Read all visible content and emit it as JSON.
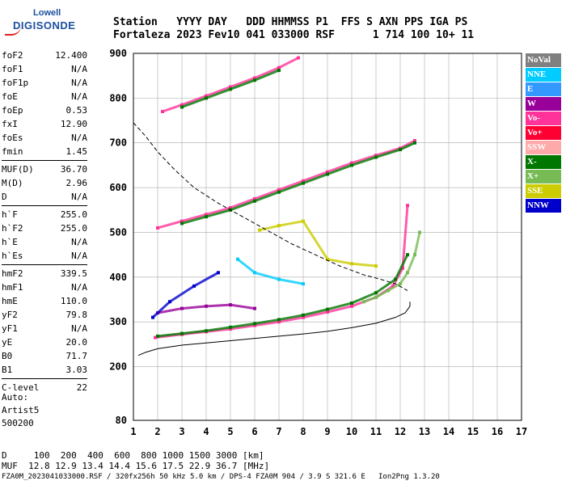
{
  "logo": {
    "line1": "Lowell",
    "line2": "DIGISONDE"
  },
  "header": {
    "labels": "Station   YYYY DAY   DDD HHMMSS P1  FFS S AXN PPS IGA PS",
    "values": "Fortaleza 2023 Fev10 041 033000 RSF      1 714 100 10+ 11"
  },
  "params": {
    "group1": [
      {
        "name": "foF2",
        "value": "12.400"
      },
      {
        "name": "foF1",
        "value": "N/A"
      },
      {
        "name": "foF1p",
        "value": "N/A"
      },
      {
        "name": "foE",
        "value": "N/A"
      },
      {
        "name": "foEp",
        "value": "0.53"
      },
      {
        "name": "fxI",
        "value": "12.90"
      },
      {
        "name": "foEs",
        "value": "N/A"
      },
      {
        "name": "fmin",
        "value": "1.45"
      }
    ],
    "group2": [
      {
        "name": "MUF(D)",
        "value": "36.70"
      },
      {
        "name": "M(D)",
        "value": "2.96"
      },
      {
        "name": "D",
        "value": "N/A"
      }
    ],
    "group3": [
      {
        "name": "h`F",
        "value": "255.0"
      },
      {
        "name": "h`F2",
        "value": "255.0"
      },
      {
        "name": "h`E",
        "value": "N/A"
      },
      {
        "name": "h`Es",
        "value": "N/A"
      }
    ],
    "group4": [
      {
        "name": "hmF2",
        "value": "339.5"
      },
      {
        "name": "hmF1",
        "value": "N/A"
      },
      {
        "name": "hmE",
        "value": "110.0"
      },
      {
        "name": "yF2",
        "value": "79.8"
      },
      {
        "name": "yF1",
        "value": "N/A"
      },
      {
        "name": "yE",
        "value": "20.0"
      },
      {
        "name": "B0",
        "value": "71.7"
      },
      {
        "name": "B1",
        "value": "3.03"
      }
    ],
    "group5": [
      {
        "name": "C-level",
        "value": "22"
      }
    ]
  },
  "auto": {
    "line1": "Auto:",
    "line2": "Artist5",
    "line3": "500200"
  },
  "legend": [
    {
      "label": "NoVal",
      "color": "#808080",
      "text": "#ffffff"
    },
    {
      "label": "NNE",
      "color": "#00ccff",
      "text": "#ffffff"
    },
    {
      "label": "E",
      "color": "#3399ff",
      "text": "#ffffff"
    },
    {
      "label": "W",
      "color": "#990099",
      "text": "#ffffff"
    },
    {
      "label": "Vo-",
      "color": "#ff3399",
      "text": "#ffffff"
    },
    {
      "label": "Vo+",
      "color": "#ff0033",
      "text": "#ffffff"
    },
    {
      "label": "SSW",
      "color": "#ffaaaa",
      "text": "#ffffff"
    },
    {
      "label": "X-",
      "color": "#007700",
      "text": "#ffffff"
    },
    {
      "label": "X+",
      "color": "#77bb55",
      "text": "#ffffff"
    },
    {
      "label": "SSE",
      "color": "#cccc00",
      "text": "#ffffff"
    },
    {
      "label": "NNW",
      "color": "#0000cc",
      "text": "#ffffff"
    }
  ],
  "bottom": {
    "d_row": "D     100  200  400  600  800 1000 1500 3000 [km]",
    "muf_row": "MUF  12.8 12.9 13.4 14.4 15.6 17.5 22.9 36.7 [MHz]"
  },
  "footer": "FZA0M_2023041033000.RSF / 320fx256h 50 kHz 5.0 km / DPS-4 FZA0M 904 / 3.9 S 321.6 E   Ion2Png 1.3.20",
  "chart_data": {
    "type": "scatter",
    "xlim": [
      1,
      17
    ],
    "ylim": [
      80,
      900
    ],
    "x_ticks": [
      1,
      2,
      3,
      4,
      5,
      6,
      7,
      8,
      9,
      10,
      11,
      12,
      13,
      14,
      15,
      16,
      17
    ],
    "y_ticks": [
      80,
      200,
      300,
      400,
      500,
      600,
      700,
      800,
      900
    ],
    "grid": true,
    "profile_dashed": {
      "x": [
        1.0,
        1.5,
        2.0,
        2.7,
        3.5,
        4.5,
        5.5,
        6.5,
        7.5,
        8.5,
        9.5,
        10.5,
        11.2,
        11.8,
        12.3
      ],
      "y": [
        745,
        715,
        680,
        640,
        600,
        565,
        535,
        505,
        475,
        450,
        425,
        405,
        395,
        385,
        370
      ]
    },
    "profile_solid": {
      "x": [
        1.2,
        1.5,
        2.0,
        3.0,
        4.0,
        5.0,
        6.0,
        7.0,
        8.0,
        9.0,
        10.0,
        11.0,
        11.8,
        12.2,
        12.4,
        12.4
      ],
      "y": [
        225,
        232,
        240,
        248,
        253,
        258,
        263,
        268,
        273,
        279,
        287,
        297,
        310,
        320,
        335,
        345
      ]
    },
    "traces": [
      {
        "name": "Vo-",
        "color": "#ff3399",
        "x": [
          1.9,
          3,
          4,
          5,
          6,
          7,
          8,
          9,
          10,
          11,
          11.7,
          12.1,
          12.3
        ],
        "y": [
          265,
          272,
          278,
          284,
          292,
          300,
          310,
          322,
          335,
          355,
          380,
          420,
          560
        ]
      },
      {
        "name": "X-",
        "color": "#007700",
        "x": [
          2,
          3,
          4,
          5,
          6,
          7,
          8,
          9,
          10,
          11,
          11.8,
          12.3
        ],
        "y": [
          268,
          274,
          280,
          288,
          296,
          305,
          315,
          328,
          342,
          365,
          395,
          450
        ]
      },
      {
        "name": "X+",
        "color": "#77bb55",
        "x": [
          10.5,
          11,
          11.5,
          12,
          12.3,
          12.6,
          12.8
        ],
        "y": [
          345,
          355,
          370,
          385,
          410,
          450,
          500
        ]
      },
      {
        "name": "Vo-",
        "color": "#ff3399",
        "x": [
          2,
          3,
          4,
          5,
          6,
          7,
          8,
          9,
          10,
          11,
          12,
          12.6
        ],
        "y": [
          510,
          525,
          540,
          555,
          575,
          595,
          615,
          635,
          655,
          672,
          688,
          705
        ]
      },
      {
        "name": "X-",
        "color": "#007700",
        "x": [
          3,
          4,
          5,
          6,
          7,
          8,
          9,
          10,
          11,
          12,
          12.6
        ],
        "y": [
          520,
          535,
          550,
          570,
          590,
          610,
          630,
          650,
          668,
          685,
          700
        ]
      },
      {
        "name": "Vo-",
        "color": "#ff3399",
        "x": [
          2.2,
          3,
          4,
          5,
          6,
          7,
          7.8
        ],
        "y": [
          770,
          785,
          805,
          825,
          845,
          868,
          890
        ]
      },
      {
        "name": "X-",
        "color": "#007700",
        "x": [
          3,
          4,
          5,
          6,
          7
        ],
        "y": [
          780,
          800,
          820,
          840,
          862
        ]
      },
      {
        "name": "W",
        "color": "#990099",
        "x": [
          2,
          3,
          4,
          5,
          6
        ],
        "y": [
          320,
          330,
          335,
          338,
          330
        ]
      },
      {
        "name": "NNW",
        "color": "#0000cc",
        "x": [
          1.8,
          2.5,
          3.5,
          4.5
        ],
        "y": [
          310,
          345,
          380,
          410
        ]
      },
      {
        "name": "SSE",
        "color": "#cccc00",
        "x": [
          6.2,
          7,
          8,
          9,
          10,
          11
        ],
        "y": [
          505,
          515,
          525,
          440,
          430,
          425
        ]
      },
      {
        "name": "NNE",
        "color": "#00ccff",
        "x": [
          5.3,
          6,
          7,
          8
        ],
        "y": [
          440,
          410,
          395,
          385
        ]
      }
    ]
  }
}
